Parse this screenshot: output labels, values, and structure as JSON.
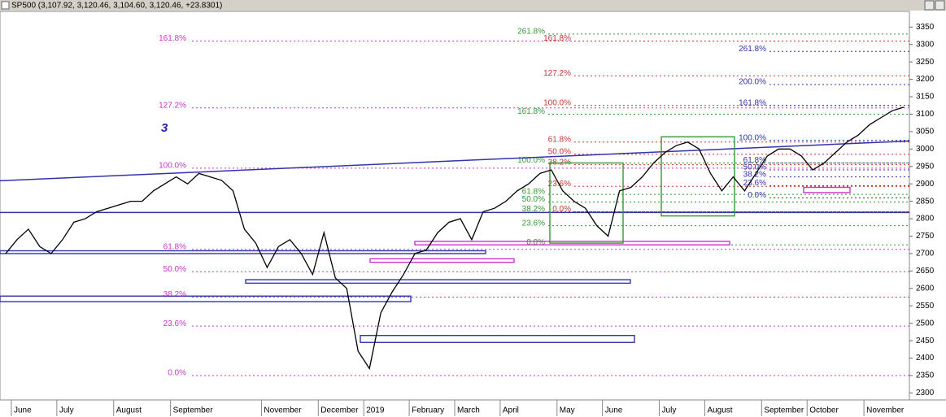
{
  "chart_data": {
    "type": "line",
    "title": "SP500 (3,107.92, 3,120.46, 3,104.60, 3,120.46, +23.8301)",
    "annotation": "3",
    "categories": [
      null,
      "June",
      null,
      null,
      null,
      "July",
      null,
      null,
      null,
      null,
      "August",
      null,
      null,
      null,
      null,
      "September",
      null,
      null,
      null,
      null,
      null,
      null,
      null,
      "November",
      null,
      null,
      null,
      null,
      "December",
      null,
      null,
      null,
      "2019",
      null,
      null,
      null,
      "February",
      null,
      null,
      null,
      "March",
      null,
      null,
      null,
      "April",
      null,
      null,
      null,
      null,
      "May",
      null,
      null,
      null,
      "June",
      null,
      null,
      null,
      null,
      "July",
      null,
      null,
      null,
      "August",
      null,
      null,
      null,
      null,
      "September",
      null,
      null,
      null,
      "October",
      null,
      null,
      null,
      null,
      "November",
      null,
      null,
      null
    ],
    "series": [
      {
        "color": "#000000",
        "values": [
          2700,
          2740,
          2770,
          2720,
          2700,
          2740,
          2790,
          2800,
          2820,
          2830,
          2840,
          2850,
          2850,
          2880,
          2900,
          2920,
          2900,
          2930,
          2920,
          2910,
          2880,
          2770,
          2730,
          2660,
          2720,
          2740,
          2700,
          2640,
          2760,
          2630,
          2600,
          2420,
          2370,
          2530,
          2590,
          2640,
          2700,
          2710,
          2760,
          2790,
          2800,
          2740,
          2820,
          2830,
          2850,
          2880,
          2900,
          2930,
          2940,
          2880,
          2850,
          2830,
          2780,
          2750,
          2880,
          2890,
          2920,
          2960,
          2990,
          3010,
          3020,
          3000,
          2930,
          2880,
          2920,
          2880,
          2930,
          2980,
          3000,
          3000,
          2980,
          2940,
          2960,
          2990,
          3020,
          3040,
          3070,
          3090,
          3110,
          3120
        ]
      }
    ],
    "ylim": [
      2280,
      3395
    ],
    "yticks": [
      2300,
      2350,
      2400,
      2450,
      2500,
      2550,
      2600,
      2650,
      2700,
      2750,
      2800,
      2850,
      2900,
      2950,
      3000,
      3050,
      3100,
      3150,
      3200,
      3250,
      3300,
      3350
    ],
    "fib_sets": [
      {
        "color": "#cc33cc",
        "levels": [
          {
            "label": "161.8%",
            "value": 3310
          },
          {
            "label": "127.2%",
            "value": 3118
          },
          {
            "label": "100.0%",
            "value": 2945
          },
          {
            "label": "61.8%",
            "value": 2712
          },
          {
            "label": "50.0%",
            "value": 2648
          },
          {
            "label": "38.2%",
            "value": 2575
          },
          {
            "label": "23.6%",
            "value": 2492
          },
          {
            "label": "0.0%",
            "value": 2350
          }
        ]
      },
      {
        "color": "#339933",
        "levels": [
          {
            "label": "261.8%",
            "value": 3330
          },
          {
            "label": "161.8%",
            "value": 3100
          },
          {
            "label": "100.0%",
            "value": 2960
          },
          {
            "label": "61.8%",
            "value": 2870
          },
          {
            "label": "50.0%",
            "value": 2848
          },
          {
            "label": "38.2%",
            "value": 2820
          },
          {
            "label": "23.6%",
            "value": 2780
          },
          {
            "label": "0.0%",
            "value": 2725
          }
        ]
      },
      {
        "color": "#cc3333",
        "levels": [
          {
            "label": "161.8%",
            "value": 3310
          },
          {
            "label": "127.2%",
            "value": 3210
          },
          {
            "label": "100.0%",
            "value": 3125
          },
          {
            "label": "61.8%",
            "value": 3020
          },
          {
            "label": "50.0%",
            "value": 2985
          },
          {
            "label": "38.2%",
            "value": 2955
          },
          {
            "label": "23.6%",
            "value": 2893
          },
          {
            "label": "0.0%",
            "value": 2820
          }
        ]
      },
      {
        "color": "#3333aa",
        "levels": [
          {
            "label": "261.8%",
            "value": 3280
          },
          {
            "label": "200.0%",
            "value": 3185
          },
          {
            "label": "161.8%",
            "value": 3125
          },
          {
            "label": "100.0%",
            "value": 3025
          },
          {
            "label": "61.8%",
            "value": 2960
          },
          {
            "label": "50.0%",
            "value": 2940
          },
          {
            "label": "38.2%",
            "value": 2920
          },
          {
            "label": "23.6%",
            "value": 2895
          },
          {
            "label": "0.0%",
            "value": 2860
          }
        ]
      }
    ],
    "lines": [
      {
        "color": "#3333aa",
        "values": [
          2909,
          3023
        ]
      },
      {
        "color": "#3333aa",
        "values": [
          2818,
          2818
        ]
      }
    ],
    "boxes": [
      {
        "color": "#cc33cc",
        "range": [
          2725,
          2735
        ]
      },
      {
        "color": "#cc33cc",
        "range": [
          2675,
          2685
        ]
      },
      {
        "color": "#3333aa",
        "range": [
          2700,
          2708
        ]
      },
      {
        "color": "#3333aa",
        "range": [
          2615,
          2625
        ]
      },
      {
        "color": "#3333aa",
        "range": [
          2562,
          2578
        ]
      },
      {
        "color": "#3333aa",
        "range": [
          2445,
          2465
        ]
      },
      {
        "color": "#339933",
        "range": [
          2730,
          2960
        ]
      },
      {
        "color": "#339933",
        "range": [
          2808,
          3035
        ]
      },
      {
        "color": "#cc33cc",
        "range": [
          2875,
          2890
        ]
      }
    ]
  }
}
